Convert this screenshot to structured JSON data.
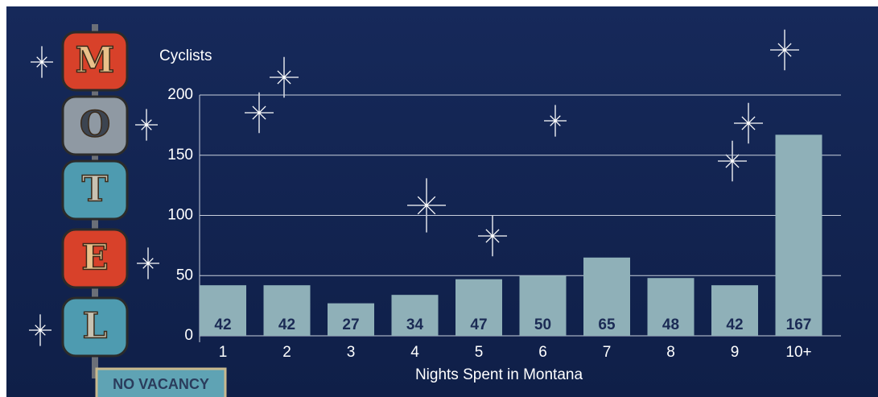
{
  "chart_data": {
    "type": "bar",
    "y_axis_title": "Cyclists",
    "x_axis_title": "Nights Spent in Montana",
    "categories": [
      "1",
      "2",
      "3",
      "4",
      "5",
      "6",
      "7",
      "8",
      "9",
      "10+"
    ],
    "values": [
      42,
      42,
      27,
      34,
      47,
      50,
      65,
      48,
      42,
      167
    ],
    "color": "#8fb0b8",
    "ylim": [
      0,
      200
    ],
    "yticks": [
      0,
      50,
      100,
      150,
      200
    ],
    "grid": true
  },
  "sign": {
    "letters": [
      "M",
      "O",
      "T",
      "E",
      "L"
    ],
    "caption": "NO VACANCY"
  }
}
